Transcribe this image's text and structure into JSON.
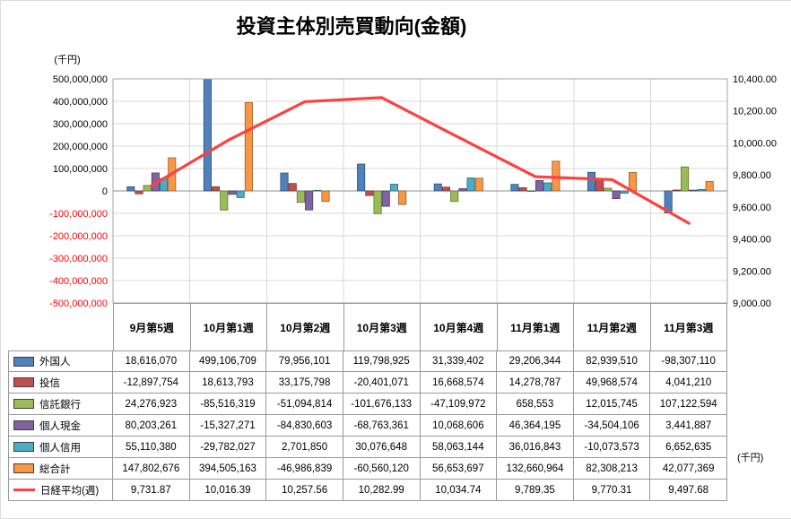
{
  "title": "投資主体別売買動向(金額)",
  "axis_units": {
    "left": "(千円)",
    "right": "(千円)"
  },
  "chart_data": {
    "type": "bar+line",
    "title": "投資主体別売買動向(金額)",
    "categories": [
      "9月第5週",
      "10月第1週",
      "10月第2週",
      "10月第3週",
      "10月第4週",
      "11月第1週",
      "11月第2週",
      "11月第3週"
    ],
    "series": [
      {
        "name": "外国人",
        "color": "#4F81BD",
        "values": [
          18616070,
          499106709,
          79956101,
          119798925,
          31339402,
          29206344,
          82939510,
          -98307110
        ]
      },
      {
        "name": "投信",
        "color": "#C0504D",
        "values": [
          -12897754,
          18613793,
          33175798,
          -20401071,
          16668574,
          14278787,
          49968574,
          4041210
        ]
      },
      {
        "name": "信託銀行",
        "color": "#9BBB59",
        "values": [
          24276923,
          -85516319,
          -51094814,
          -101676133,
          -47109972,
          658553,
          12015745,
          107122594
        ]
      },
      {
        "name": "個人現金",
        "color": "#8064A2",
        "values": [
          80203261,
          -15327271,
          -84830603,
          -68763361,
          10068606,
          46364195,
          -34504106,
          3441887
        ]
      },
      {
        "name": "個人信用",
        "color": "#4BACC6",
        "values": [
          55110380,
          -29782027,
          2701850,
          30076648,
          58063144,
          36016843,
          -10073573,
          6652635
        ]
      },
      {
        "name": "総合計",
        "color": "#F79646",
        "values": [
          147802676,
          394505163,
          -46986839,
          -60560120,
          56653697,
          132660964,
          82308213,
          42077369
        ]
      }
    ],
    "line_series": {
      "name": "日経平均(週)",
      "color": "#FF4040",
      "axis": "right",
      "values": [
        9731.87,
        10016.39,
        10257.56,
        10282.99,
        10034.74,
        9789.35,
        9770.31,
        9497.68
      ]
    },
    "left_axis": {
      "unit": "(千円)",
      "min": -500000000,
      "max": 500000000,
      "step": 100000000,
      "negative_color": "#FF0000",
      "ticks": [
        "500,000,000",
        "400,000,000",
        "300,000,000",
        "200,000,000",
        "100,000,000",
        "0",
        "-100,000,000",
        "-200,000,000",
        "-300,000,000",
        "-400,000,000",
        "-500,000,000"
      ]
    },
    "right_axis": {
      "unit": "(千円)",
      "min": 9000,
      "max": 10400,
      "step": 200,
      "ticks": [
        "10,400.00",
        "10,200.00",
        "10,000.00",
        "9,800.00",
        "9,600.00",
        "9,400.00",
        "9,200.00",
        "9,000.00"
      ]
    },
    "grid": true,
    "legend_position": "table-left-column",
    "table_decimals": {
      "bar_series": 0,
      "line_series": 2
    }
  }
}
